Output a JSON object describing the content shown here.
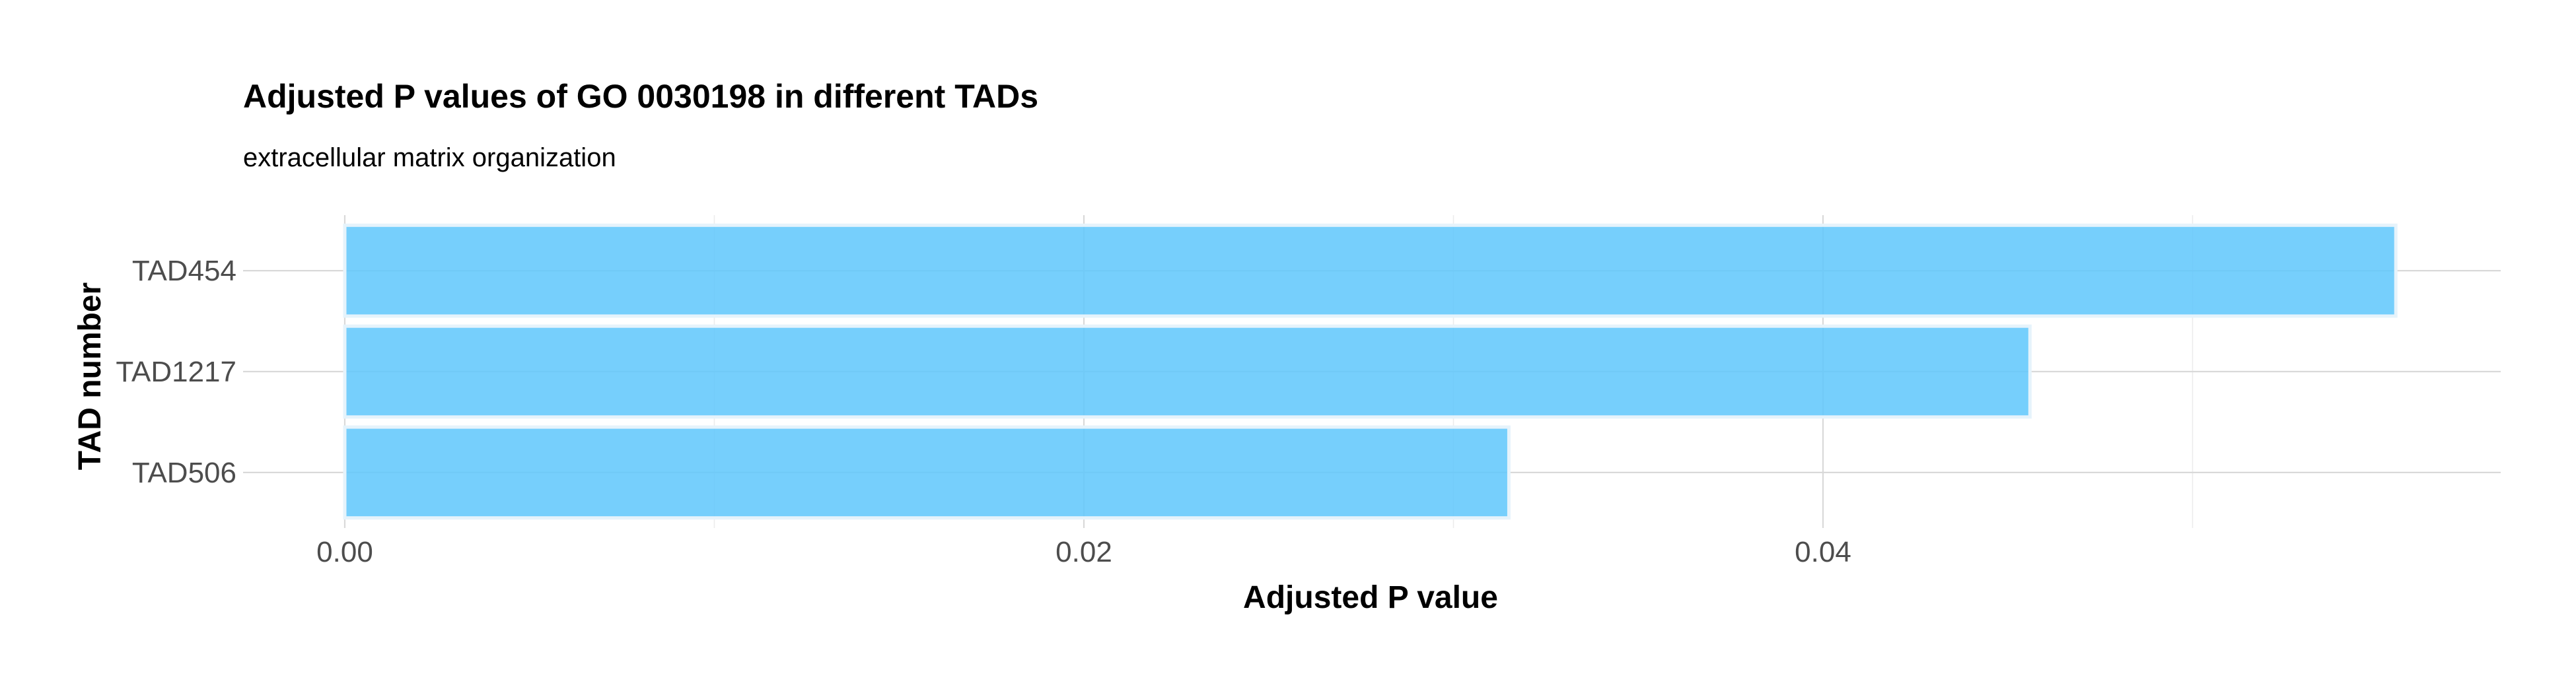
{
  "chart_data": {
    "type": "bar",
    "orientation": "horizontal",
    "title": "Adjusted P values of GO 0030198 in different TADs",
    "subtitle": "extracellular matrix organization",
    "xlabel": "Adjusted P value",
    "ylabel": "TAD number",
    "categories": [
      "TAD454",
      "TAD1217",
      "TAD506"
    ],
    "values": [
      0.0555,
      0.0456,
      0.0315
    ],
    "xlim": [
      0,
      0.058
    ],
    "x_ticks": [
      0,
      0.02,
      0.04
    ],
    "x_tick_labels": [
      "0.00",
      "0.02",
      "0.04"
    ],
    "x_minor_ticks": [
      0.01,
      0.03,
      0.05
    ],
    "grid": true,
    "legend": "none",
    "colors": {
      "bar_fill": "#5ec7fc",
      "bar_outline": "#e6f3fb",
      "grid_major": "#d9d9d9",
      "grid_minor": "#ececec"
    }
  }
}
